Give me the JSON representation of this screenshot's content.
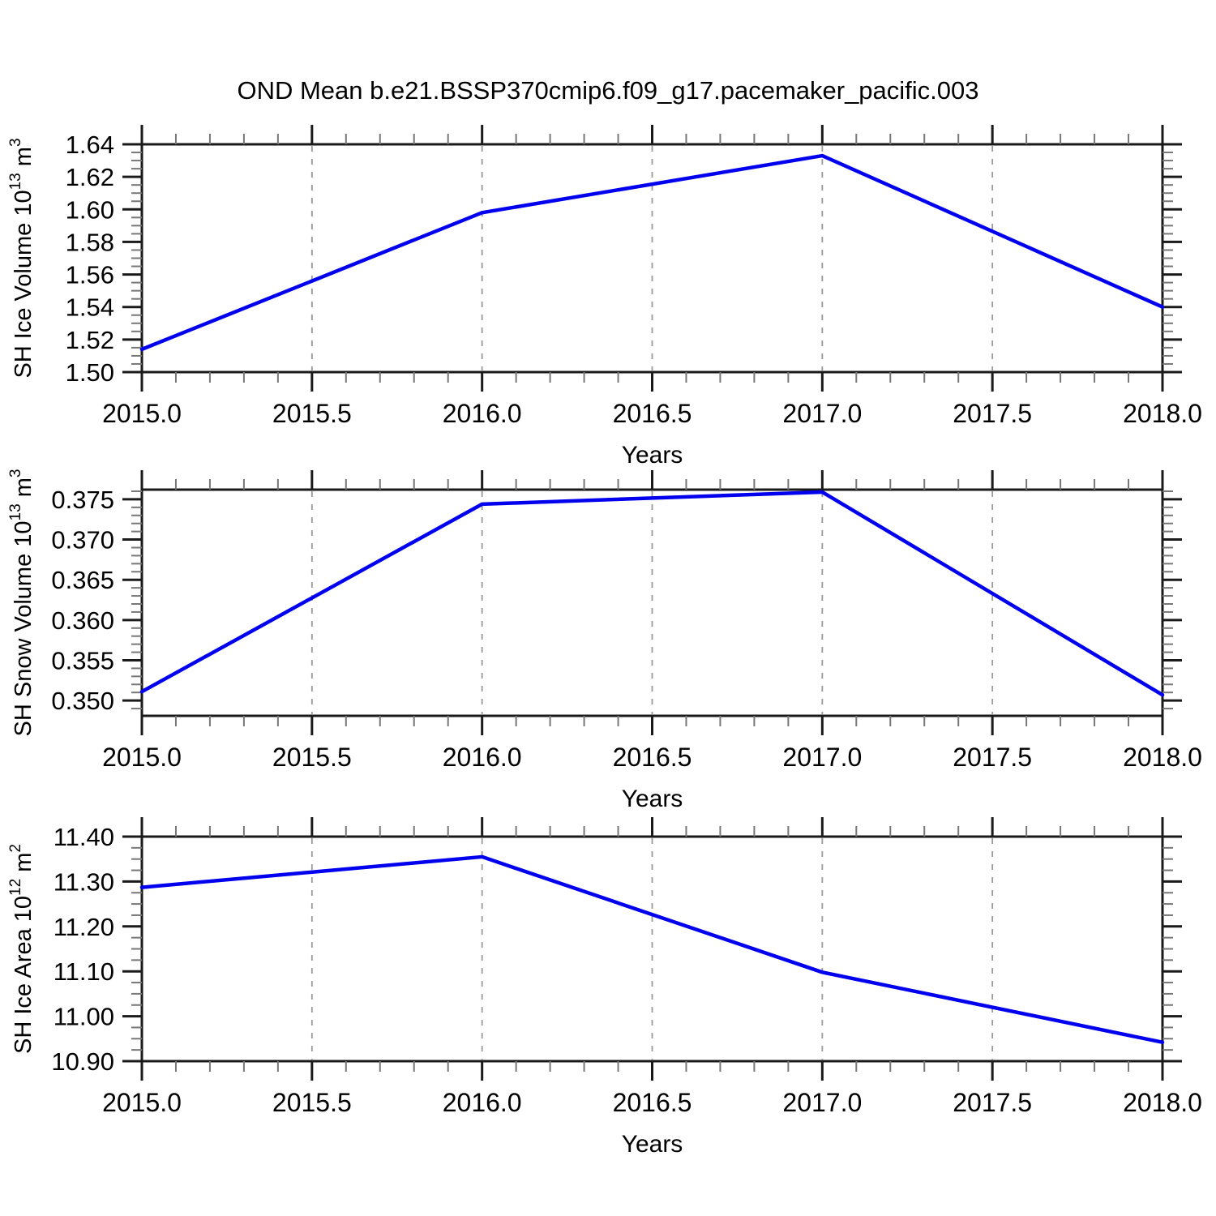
{
  "title": "OND Mean b.e21.BSSP370cmip6.f09_g17.pacemaker_pacific.003",
  "line_color": "#0000ee",
  "grid_color": "#999999",
  "axis_color": "#1a1a1a",
  "minor_tick_color": "#777777",
  "chart_data": [
    {
      "type": "line",
      "name": "sh-ice-volume",
      "x": [
        2015.0,
        2016.0,
        2017.0,
        2018.0
      ],
      "y": [
        1.514,
        1.598,
        1.633,
        1.54
      ],
      "xlabel": "Years",
      "ylabel_text": "SH Ice Volume 10^13 m^3",
      "ylabel_parts": [
        {
          "t": "SH Ice Volume 10"
        },
        {
          "t": "13",
          "sup": true
        },
        {
          "t": " m"
        },
        {
          "t": "3",
          "sup": true
        }
      ],
      "xlim": [
        2015.0,
        2018.0
      ],
      "ylim": [
        1.5,
        1.64
      ],
      "xticks": [
        2015.0,
        2015.5,
        2016.0,
        2016.5,
        2017.0,
        2017.5,
        2018.0
      ],
      "xtick_labels": [
        "2015.0",
        "2015.5",
        "2016.0",
        "2016.5",
        "2017.0",
        "2017.5",
        "2018.0"
      ],
      "yticks": [
        1.5,
        1.52,
        1.54,
        1.56,
        1.58,
        1.6,
        1.62,
        1.64
      ],
      "ytick_labels": [
        "1.50",
        "1.52",
        "1.54",
        "1.56",
        "1.58",
        "1.60",
        "1.62",
        "1.64"
      ],
      "x_minor_step": 0.1,
      "y_minor_step": 0.005,
      "grid_x": [
        2015.5,
        2016.0,
        2016.5,
        2017.0,
        2017.5
      ],
      "grid_on": true,
      "legend": "none"
    },
    {
      "type": "line",
      "name": "sh-snow-volume",
      "x": [
        2015.0,
        2016.0,
        2017.0,
        2018.0
      ],
      "y": [
        0.3511,
        0.3744,
        0.3759,
        0.3507
      ],
      "xlabel": "Years",
      "ylabel_text": "SH Snow Volume 10^13 m^3",
      "ylabel_parts": [
        {
          "t": "SH Snow Volume 10"
        },
        {
          "t": "13",
          "sup": true
        },
        {
          "t": " m"
        },
        {
          "t": "3",
          "sup": true
        }
      ],
      "xlim": [
        2015.0,
        2018.0
      ],
      "ylim": [
        0.3481,
        0.3762
      ],
      "xticks": [
        2015.0,
        2015.5,
        2016.0,
        2016.5,
        2017.0,
        2017.5,
        2018.0
      ],
      "xtick_labels": [
        "2015.0",
        "2015.5",
        "2016.0",
        "2016.5",
        "2017.0",
        "2017.5",
        "2018.0"
      ],
      "yticks": [
        0.35,
        0.355,
        0.36,
        0.365,
        0.37,
        0.375
      ],
      "ytick_labels": [
        "0.350",
        "0.355",
        "0.360",
        "0.365",
        "0.370",
        "0.375"
      ],
      "x_minor_step": 0.1,
      "y_minor_step": 0.001,
      "grid_x": [
        2015.5,
        2016.0,
        2016.5,
        2017.0,
        2017.5
      ],
      "grid_on": true,
      "legend": "none"
    },
    {
      "type": "line",
      "name": "sh-ice-area",
      "x": [
        2015.0,
        2016.0,
        2017.0,
        2018.0
      ],
      "y": [
        11.287,
        11.355,
        11.098,
        10.942
      ],
      "xlabel": "Years",
      "ylabel_text": "SH Ice Area 10^12 m^2",
      "ylabel_parts": [
        {
          "t": "SH Ice Area 10"
        },
        {
          "t": "12",
          "sup": true
        },
        {
          "t": " m"
        },
        {
          "t": "2",
          "sup": true
        }
      ],
      "xlim": [
        2015.0,
        2018.0
      ],
      "ylim": [
        10.9,
        11.4
      ],
      "xticks": [
        2015.0,
        2015.5,
        2016.0,
        2016.5,
        2017.0,
        2017.5,
        2018.0
      ],
      "xtick_labels": [
        "2015.0",
        "2015.5",
        "2016.0",
        "2016.5",
        "2017.0",
        "2017.5",
        "2018.0"
      ],
      "yticks": [
        10.9,
        11.0,
        11.1,
        11.2,
        11.3,
        11.4
      ],
      "ytick_labels": [
        "10.90",
        "11.00",
        "11.10",
        "11.20",
        "11.30",
        "11.40"
      ],
      "x_minor_step": 0.1,
      "y_minor_step": 0.025,
      "grid_x": [
        2015.5,
        2016.0,
        2016.5,
        2017.0,
        2017.5
      ],
      "grid_on": true,
      "legend": "none"
    }
  ]
}
